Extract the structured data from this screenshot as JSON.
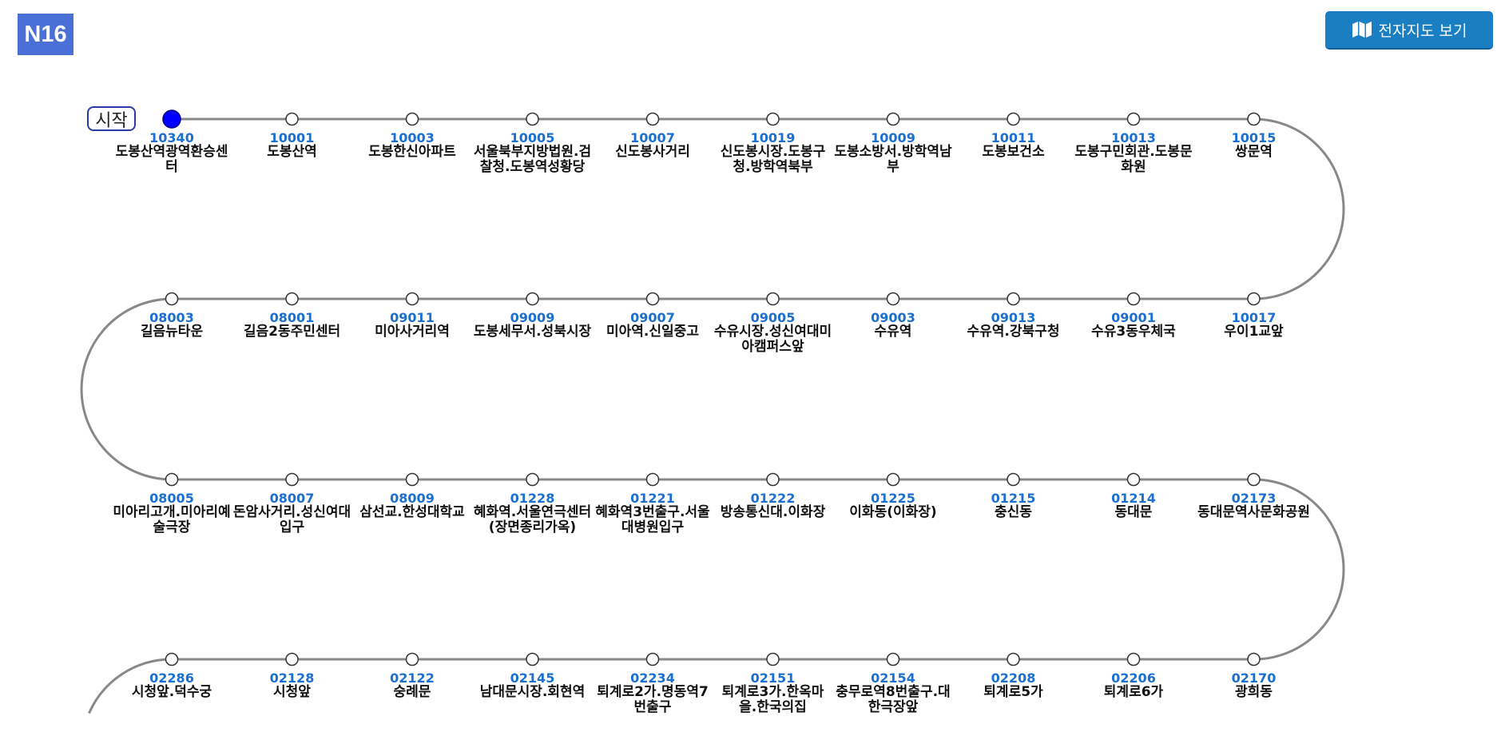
{
  "header": {
    "route_number": "N16",
    "map_button_label": "전자지도 보기",
    "map_button_icon": "map-icon"
  },
  "route": {
    "start_label": "시작",
    "colors": {
      "line": "#888888",
      "start_node": "#0000ff",
      "code": "#1a6fd1",
      "badge": "#4a6fd6",
      "button": "#1a7ec3"
    },
    "rows": [
      [
        {
          "code": "10340",
          "name": "도봉산역광역환승센터"
        },
        {
          "code": "10001",
          "name": "도봉산역"
        },
        {
          "code": "10003",
          "name": "도봉한신아파트"
        },
        {
          "code": "10005",
          "name": "서울북부지방법원.검찰청.도봉역성황당"
        },
        {
          "code": "10007",
          "name": "신도봉사거리"
        },
        {
          "code": "10019",
          "name": "신도봉시장.도봉구청.방학역북부"
        },
        {
          "code": "10009",
          "name": "도봉소방서.방학역남부"
        },
        {
          "code": "10011",
          "name": "도봉보건소"
        },
        {
          "code": "10013",
          "name": "도봉구민회관.도봉문화원"
        },
        {
          "code": "10015",
          "name": "쌍문역"
        }
      ],
      [
        {
          "code": "08003",
          "name": "길음뉴타운"
        },
        {
          "code": "08001",
          "name": "길음2동주민센터"
        },
        {
          "code": "09011",
          "name": "미아사거리역"
        },
        {
          "code": "09009",
          "name": "도봉세무서.성북시장"
        },
        {
          "code": "09007",
          "name": "미아역.신일중고"
        },
        {
          "code": "09005",
          "name": "수유시장.성신여대미아캠퍼스앞"
        },
        {
          "code": "09003",
          "name": "수유역"
        },
        {
          "code": "09013",
          "name": "수유역.강북구청"
        },
        {
          "code": "09001",
          "name": "수유3동우체국"
        },
        {
          "code": "10017",
          "name": "우이1교앞"
        }
      ],
      [
        {
          "code": "08005",
          "name": "미아리고개.미아리예술극장"
        },
        {
          "code": "08007",
          "name": "돈암사거리.성신여대입구"
        },
        {
          "code": "08009",
          "name": "삼선교.한성대학교"
        },
        {
          "code": "01228",
          "name": "혜화역.서울연극센터(장면종리가옥)"
        },
        {
          "code": "01221",
          "name": "혜화역3번출구.서울대병원입구"
        },
        {
          "code": "01222",
          "name": "방송통신대.이화장"
        },
        {
          "code": "01225",
          "name": "이화동(이화장)"
        },
        {
          "code": "01215",
          "name": "충신동"
        },
        {
          "code": "01214",
          "name": "동대문"
        },
        {
          "code": "02173",
          "name": "동대문역사문화공원"
        }
      ],
      [
        {
          "code": "02286",
          "name": "시청앞.덕수궁"
        },
        {
          "code": "02128",
          "name": "시청앞"
        },
        {
          "code": "02122",
          "name": "숭례문"
        },
        {
          "code": "02145",
          "name": "남대문시장.회현역"
        },
        {
          "code": "02234",
          "name": "퇴계로2가.명동역7번출구"
        },
        {
          "code": "02151",
          "name": "퇴계로3가.한옥마을.한국의집"
        },
        {
          "code": "02154",
          "name": "충무로역8번출구.대한극장앞"
        },
        {
          "code": "02208",
          "name": "퇴계로5가"
        },
        {
          "code": "02206",
          "name": "퇴계로6가"
        },
        {
          "code": "02170",
          "name": "광희동"
        }
      ]
    ]
  }
}
